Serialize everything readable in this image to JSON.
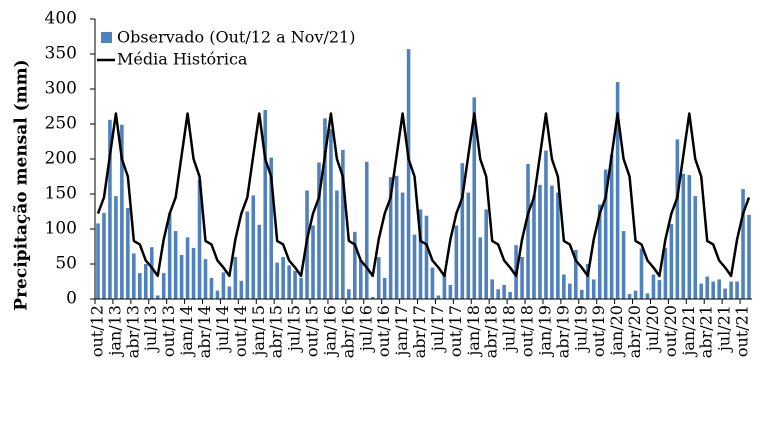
{
  "chart_data": {
    "type": "bar",
    "y_label": "Precipitação mensal (mm)",
    "ylim": [
      0,
      400
    ],
    "yticks": [
      0,
      50,
      100,
      150,
      200,
      250,
      300,
      350,
      400
    ],
    "legend": "top-left",
    "categories": [
      "out/12",
      null,
      null,
      "jan/13",
      null,
      null,
      "abr/13",
      null,
      null,
      "jul/13",
      null,
      null,
      "out/13",
      null,
      null,
      "jan/14",
      null,
      null,
      "abr/14",
      null,
      null,
      "jul/14",
      null,
      null,
      "out/14",
      null,
      null,
      "jan/15",
      null,
      null,
      "abr/15",
      null,
      null,
      "jul/15",
      null,
      null,
      "out/15",
      null,
      null,
      "jan/16",
      null,
      null,
      "abr/16",
      null,
      null,
      "jul/16",
      null,
      null,
      "out/16",
      null,
      null,
      "jan/17",
      null,
      null,
      "abr/17",
      null,
      null,
      "jul/17",
      null,
      null,
      "out/17",
      null,
      null,
      "jan/18",
      null,
      null,
      "abr/18",
      null,
      null,
      "jul/18",
      null,
      null,
      "out/18",
      null,
      null,
      "jan/19",
      null,
      null,
      "abr/19",
      null,
      null,
      "jul/19",
      null,
      null,
      "out/19",
      null,
      null,
      "jan/20",
      null,
      null,
      "abr/20",
      null,
      null,
      "jul/20",
      null,
      null,
      "out/20",
      null,
      null,
      "jan/21",
      null,
      null,
      "abr/21",
      null,
      null,
      "jul/21",
      null,
      null,
      "out/21",
      null
    ],
    "series": [
      {
        "name": "Observado (Out/12 a Nov/21)",
        "type": "bar",
        "color": "#4f81bd",
        "values": [
          108,
          123,
          256,
          147,
          249,
          130,
          65,
          37,
          50,
          74,
          5,
          37,
          122,
          97,
          63,
          88,
          73,
          170,
          57,
          30,
          12,
          38,
          18,
          60,
          26,
          125,
          148,
          106,
          270,
          202,
          52,
          60,
          48,
          40,
          30,
          155,
          105,
          195,
          258,
          243,
          155,
          213,
          14,
          96,
          55,
          196,
          3,
          60,
          30,
          174,
          176,
          152,
          357,
          92,
          128,
          119,
          45,
          5,
          36,
          20,
          105,
          194,
          152,
          288,
          88,
          128,
          28,
          14,
          20,
          10,
          77,
          60,
          193,
          148,
          163,
          212,
          162,
          152,
          35,
          22,
          70,
          13,
          50,
          28,
          135,
          185,
          206,
          310,
          97,
          7,
          12,
          72,
          8,
          35,
          27,
          73,
          107,
          228,
          179,
          177,
          147,
          22,
          32,
          25,
          28,
          15,
          25,
          25,
          157,
          120
        ]
      },
      {
        "name": "Média Histórica",
        "type": "line",
        "color": "#000000",
        "values": [
          122,
          145,
          205,
          265,
          200,
          175,
          83,
          78,
          55,
          45,
          33,
          85,
          122,
          145,
          205,
          265,
          200,
          175,
          83,
          78,
          55,
          45,
          33,
          85,
          122,
          145,
          205,
          265,
          200,
          175,
          83,
          78,
          55,
          45,
          33,
          85,
          122,
          145,
          205,
          265,
          200,
          175,
          83,
          78,
          55,
          45,
          33,
          85,
          122,
          145,
          205,
          265,
          200,
          175,
          83,
          78,
          55,
          45,
          33,
          85,
          122,
          145,
          205,
          265,
          200,
          175,
          83,
          78,
          55,
          45,
          33,
          85,
          122,
          145,
          205,
          265,
          200,
          175,
          83,
          78,
          55,
          45,
          33,
          85,
          122,
          145,
          205,
          265,
          200,
          175,
          83,
          78,
          55,
          45,
          33,
          85,
          122,
          145,
          205,
          265,
          200,
          175,
          83,
          78,
          55,
          45,
          33,
          85,
          122,
          145
        ]
      }
    ]
  }
}
